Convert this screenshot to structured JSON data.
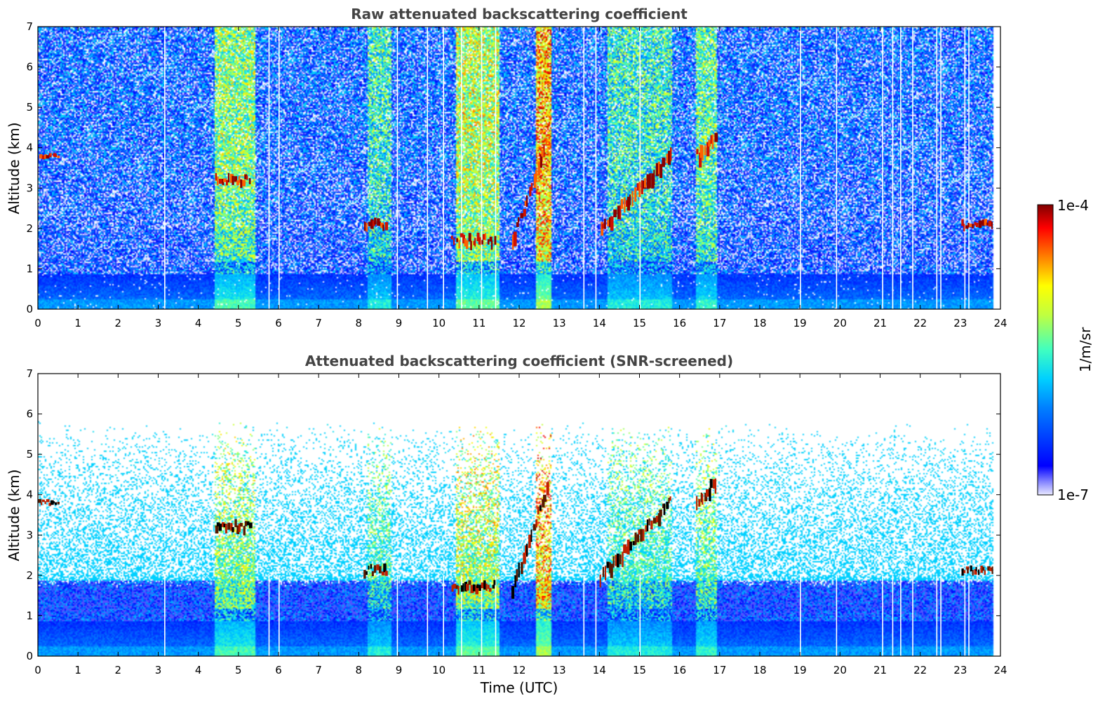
{
  "chart_data": [
    {
      "type": "heatmap",
      "title": "Raw attenuated backscattering coefficient",
      "xlabel": "",
      "ylabel": "Altitude (km)",
      "xlim": [
        0,
        24
      ],
      "ylim": [
        0,
        7
      ],
      "x_ticks": [
        "0",
        "1",
        "2",
        "3",
        "4",
        "5",
        "6",
        "7",
        "8",
        "9",
        "10",
        "11",
        "12",
        "13",
        "14",
        "15",
        "16",
        "17",
        "18",
        "19",
        "20",
        "21",
        "22",
        "23",
        "24"
      ],
      "y_ticks": [
        "0",
        "1",
        "2",
        "3",
        "4",
        "5",
        "6",
        "7"
      ],
      "features": [
        {
          "x": [
            0.0,
            0.5
          ],
          "altitude": [
            3.75,
            3.9
          ],
          "level": "high"
        },
        {
          "x": [
            4.4,
            5.3
          ],
          "altitude": [
            3.1,
            3.4
          ],
          "level": "high"
        },
        {
          "x": [
            8.1,
            8.7
          ],
          "altitude": [
            2.0,
            2.3
          ],
          "level": "high"
        },
        {
          "x": [
            10.3,
            11.4
          ],
          "altitude": [
            1.6,
            1.9
          ],
          "level": "high"
        },
        {
          "x": [
            11.8,
            12.7
          ],
          "altitude": [
            1.7,
            4.3
          ],
          "level": "high"
        },
        {
          "x": [
            14.0,
            15.8
          ],
          "altitude": [
            2.0,
            3.9
          ],
          "level": "high"
        },
        {
          "x": [
            16.4,
            16.9
          ],
          "altitude": [
            3.8,
            4.4
          ],
          "level": "high"
        },
        {
          "x": [
            23.0,
            23.8
          ],
          "altitude": [
            2.0,
            2.25
          ],
          "level": "high"
        }
      ]
    },
    {
      "type": "heatmap",
      "title": "Attenuated backscattering coefficient (SNR-screened)",
      "xlabel": "Time (UTC)",
      "ylabel": "Altitude (km)",
      "xlim": [
        0,
        24
      ],
      "ylim": [
        0,
        7
      ],
      "x_ticks": [
        "0",
        "1",
        "2",
        "3",
        "4",
        "5",
        "6",
        "7",
        "8",
        "9",
        "10",
        "11",
        "12",
        "13",
        "14",
        "15",
        "16",
        "17",
        "18",
        "19",
        "20",
        "21",
        "22",
        "23",
        "24"
      ],
      "y_ticks": [
        "0",
        "1",
        "2",
        "3",
        "4",
        "5",
        "6",
        "7"
      ],
      "features": [
        {
          "x": [
            0.0,
            0.5
          ],
          "altitude": [
            3.75,
            3.9
          ],
          "level": "saturated"
        },
        {
          "x": [
            4.4,
            5.3
          ],
          "altitude": [
            3.1,
            3.4
          ],
          "level": "saturated"
        },
        {
          "x": [
            8.1,
            8.7
          ],
          "altitude": [
            2.0,
            2.3
          ],
          "level": "saturated"
        },
        {
          "x": [
            10.3,
            11.4
          ],
          "altitude": [
            1.6,
            1.9
          ],
          "level": "saturated"
        },
        {
          "x": [
            11.8,
            12.7
          ],
          "altitude": [
            1.7,
            4.3
          ],
          "level": "saturated"
        },
        {
          "x": [
            14.0,
            15.8
          ],
          "altitude": [
            2.0,
            3.9
          ],
          "level": "saturated"
        },
        {
          "x": [
            16.4,
            16.9
          ],
          "altitude": [
            3.8,
            4.4
          ],
          "level": "saturated"
        },
        {
          "x": [
            23.0,
            23.8
          ],
          "altitude": [
            2.0,
            2.25
          ],
          "level": "saturated"
        }
      ]
    }
  ],
  "colorbar": {
    "max_label": "1e-4",
    "min_label": "1e-7",
    "unit_label": "1/m/sr",
    "colormap": "jet",
    "scale": "log"
  }
}
